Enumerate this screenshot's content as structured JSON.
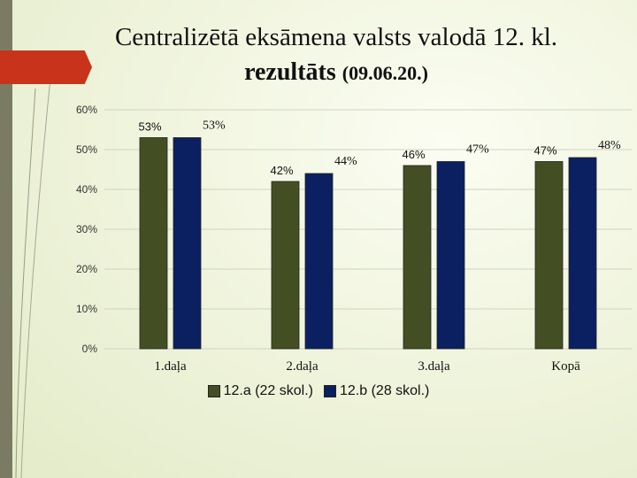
{
  "page": {
    "title_line1": "Centralizētā eksāmena valsts valodā 12. kl.",
    "title_line2": "rezultāts",
    "title_date": "(09.06.20.)"
  },
  "colors": {
    "series_a": "#434f22",
    "series_b": "#0b2060",
    "grid": "#cfd3c0"
  },
  "chart_data": {
    "type": "bar",
    "title": "Centralizētā eksāmena valsts valodā 12. kl. rezultāts (09.06.20.)",
    "categories": [
      "1.daļa",
      "2.daļa",
      "3.daļa",
      "Kopā"
    ],
    "series": [
      {
        "name": "12.a (22 skol.)",
        "values": [
          53,
          42,
          46,
          47
        ],
        "labels": [
          "53%",
          "42%",
          "46%",
          "47%"
        ]
      },
      {
        "name": "12.b (28 skol.)",
        "values": [
          53,
          44,
          47,
          48
        ],
        "labels": [
          "53%",
          "44%",
          "47%",
          "48%"
        ]
      }
    ],
    "y_ticks": [
      "0%",
      "10%",
      "20%",
      "30%",
      "40%",
      "50%",
      "60%"
    ],
    "ylim": [
      0,
      60
    ],
    "grid": true,
    "legend": "bottom"
  }
}
